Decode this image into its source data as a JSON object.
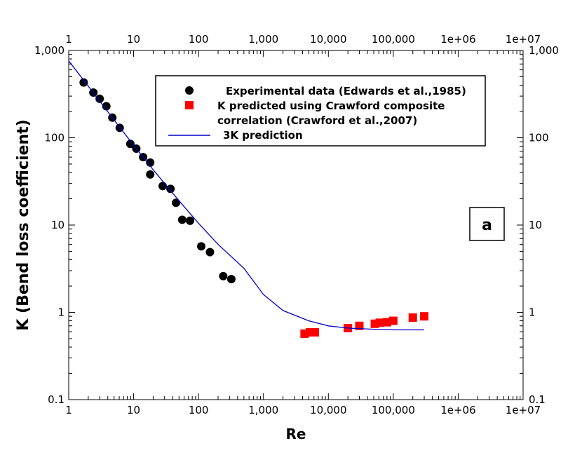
{
  "chart_data": {
    "type": "scatter",
    "title": "",
    "xlabel": "Re",
    "ylabel": "K (Bend loss coefficient)",
    "x_scale": "log",
    "y_scale": "log",
    "xlim": [
      1,
      10000000
    ],
    "ylim": [
      0.1,
      1000
    ],
    "x_ticks": [
      1,
      10,
      100,
      1000,
      10000,
      100000,
      1000000,
      10000000
    ],
    "x_tick_labels": [
      "1",
      "10",
      "100",
      "1,000",
      "10,000",
      "100,000",
      "1e+06",
      "1e+07"
    ],
    "y_ticks": [
      0.1,
      1,
      10,
      100,
      1000
    ],
    "y_tick_labels": [
      "0.1",
      "1",
      "10",
      "100",
      "1,000"
    ],
    "grid": false,
    "legend_position": "top-right",
    "annotation": "a",
    "series": [
      {
        "name": "Experimental data (Edwards et al.,1985)",
        "marker": "circle",
        "color": "#000000",
        "points": [
          [
            1.7,
            430
          ],
          [
            2.4,
            330
          ],
          [
            3.0,
            280
          ],
          [
            3.8,
            230
          ],
          [
            4.7,
            170
          ],
          [
            6.1,
            130
          ],
          [
            8.9,
            85
          ],
          [
            11,
            75
          ],
          [
            14,
            60
          ],
          [
            18,
            52
          ],
          [
            18,
            38
          ],
          [
            28,
            28
          ],
          [
            37,
            26
          ],
          [
            45,
            18
          ],
          [
            56,
            11.5
          ],
          [
            74,
            11.2
          ],
          [
            110,
            5.7
          ],
          [
            150,
            4.9
          ],
          [
            240,
            2.6
          ],
          [
            320,
            2.4
          ]
        ]
      },
      {
        "name": "K predicted using Crawford composite correlation (Crawford et al.,2007)",
        "marker": "square",
        "color": "#ff0000",
        "points": [
          [
            4300,
            0.57
          ],
          [
            5200,
            0.59
          ],
          [
            6200,
            0.59
          ],
          [
            20000,
            0.66
          ],
          [
            30000,
            0.7
          ],
          [
            52000,
            0.74
          ],
          [
            62000,
            0.76
          ],
          [
            80000,
            0.77
          ],
          [
            100000,
            0.8
          ],
          [
            200000,
            0.87
          ],
          [
            300000,
            0.9
          ]
        ]
      },
      {
        "name": "3K prediction",
        "marker": "line",
        "color": "#0000cc",
        "points": [
          [
            1,
            760
          ],
          [
            2,
            390
          ],
          [
            5,
            160
          ],
          [
            10,
            82
          ],
          [
            20,
            43
          ],
          [
            50,
            19
          ],
          [
            100,
            10.5
          ],
          [
            200,
            6.0
          ],
          [
            500,
            3.2
          ],
          [
            1000,
            1.6
          ],
          [
            2000,
            1.05
          ],
          [
            5000,
            0.8
          ],
          [
            10000,
            0.7
          ],
          [
            20000,
            0.66
          ],
          [
            50000,
            0.64
          ],
          [
            100000,
            0.63
          ],
          [
            300000,
            0.63
          ]
        ]
      }
    ]
  }
}
